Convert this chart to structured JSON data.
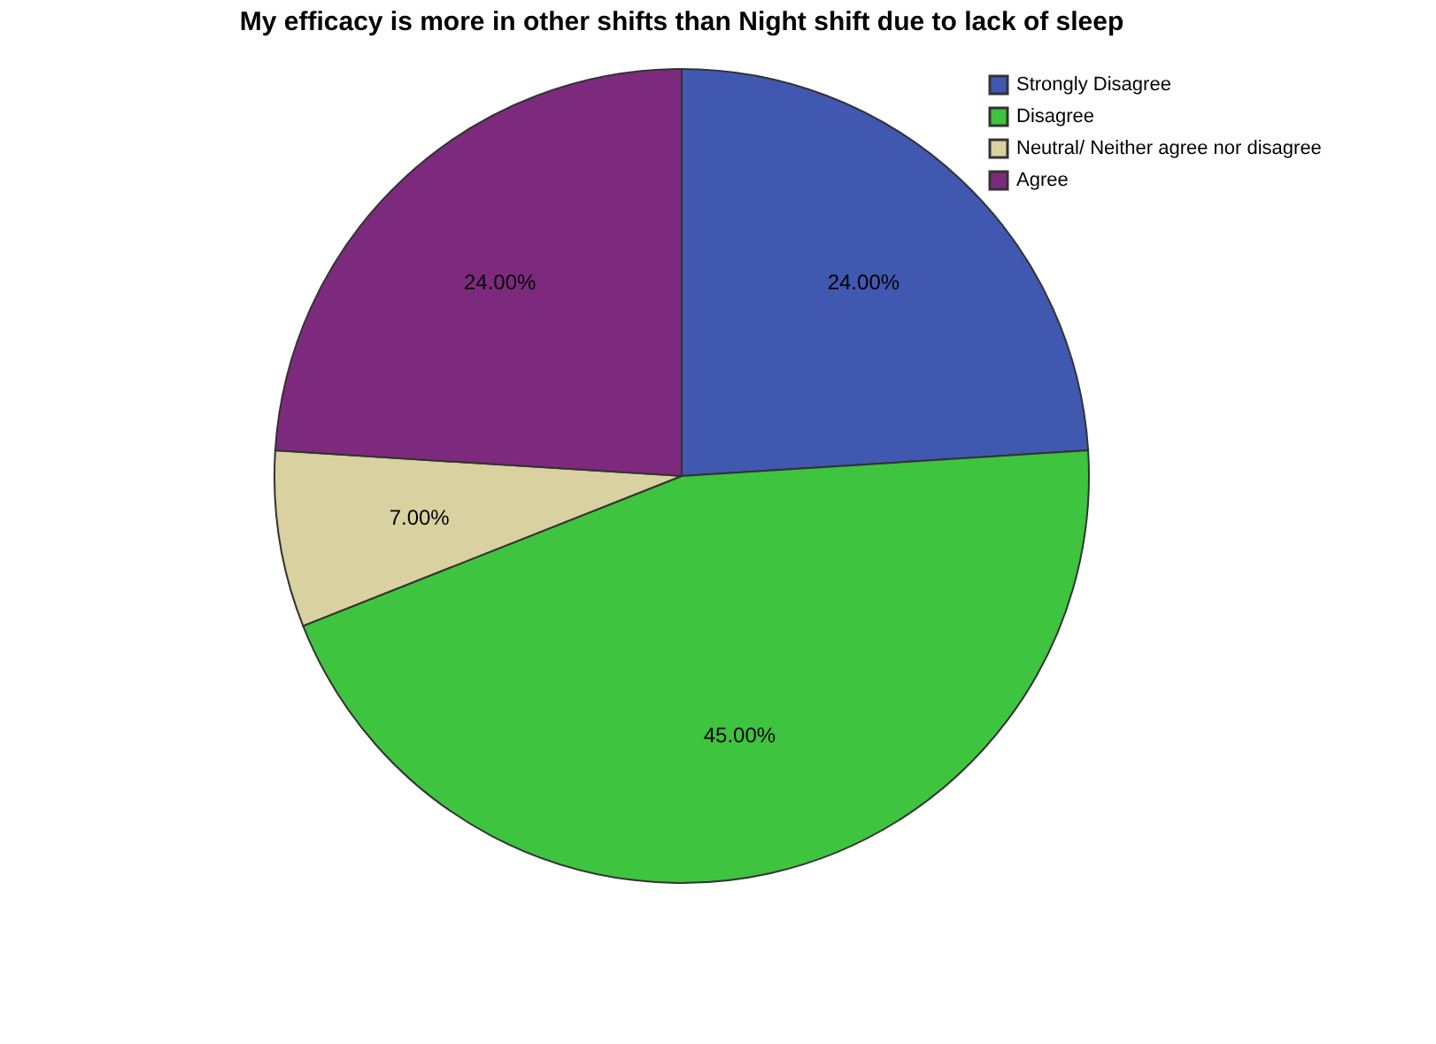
{
  "chart_data": {
    "type": "pie",
    "title": "My efficacy is more in other shifts than Night shift due to lack of sleep",
    "categories": [
      "Strongly Disagree",
      "Disagree",
      "Neutral/ Neither agree nor disagree",
      "Agree"
    ],
    "values": [
      24,
      45,
      7,
      24
    ],
    "colors": [
      "#4058b0",
      "#3ec43e",
      "#d9d1a0",
      "#7d2a7e"
    ],
    "value_labels": [
      "24.00%",
      "45.00%",
      "7.00%",
      "24.00%"
    ],
    "legend": "top right"
  }
}
